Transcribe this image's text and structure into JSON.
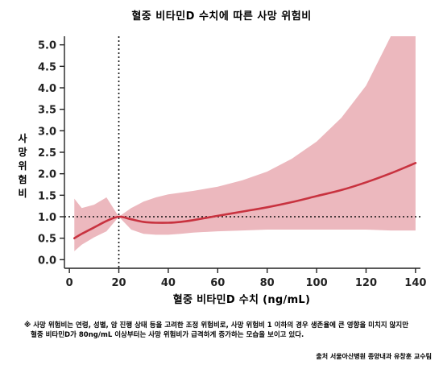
{
  "chart_data": {
    "type": "line",
    "title": "혈중 비타민D 수치에 따른 사망 위험비",
    "xlabel": "혈중 비타민D 수치 (ng/mL)",
    "ylabel": "사망\n위험비",
    "xlim": [
      -2,
      142
    ],
    "ylim": [
      -0.2,
      5.2
    ],
    "xticks": [
      0,
      20,
      40,
      60,
      80,
      100,
      120,
      140
    ],
    "xtick_labels": [
      "0",
      "20",
      "40",
      "60",
      "80",
      "100",
      "120",
      "140"
    ],
    "yticks": [
      0.0,
      0.5,
      1.0,
      1.5,
      2.0,
      2.5,
      3.0,
      3.5,
      4.0,
      4.5,
      5.0
    ],
    "ytick_labels": [
      "0.0",
      "0.5",
      "1.0",
      "1.5",
      "2.0",
      "2.5",
      "3.0",
      "3.5",
      "4.0",
      "4.5",
      "5.0"
    ],
    "reference_lines": {
      "vertical_x": 20,
      "horizontal_y": 1.0
    },
    "series": [
      {
        "color": "#c8323f",
        "x": [
          2,
          5,
          10,
          15,
          20,
          25,
          30,
          35,
          40,
          45,
          50,
          60,
          70,
          80,
          90,
          100,
          110,
          120,
          130,
          140
        ],
        "y": [
          0.5,
          0.6,
          0.75,
          0.9,
          1.0,
          0.94,
          0.88,
          0.86,
          0.86,
          0.88,
          0.92,
          1.02,
          1.12,
          1.22,
          1.34,
          1.48,
          1.62,
          1.8,
          2.01,
          2.25
        ],
        "ci_upper": [
          1.42,
          1.2,
          1.28,
          1.45,
          1.0,
          1.2,
          1.35,
          1.45,
          1.52,
          1.56,
          1.6,
          1.7,
          1.85,
          2.05,
          2.35,
          2.75,
          3.3,
          4.05,
          5.2,
          5.2
        ],
        "ci_lower": [
          0.2,
          0.35,
          0.52,
          0.66,
          1.0,
          0.7,
          0.6,
          0.58,
          0.58,
          0.6,
          0.63,
          0.66,
          0.68,
          0.7,
          0.7,
          0.7,
          0.7,
          0.7,
          0.68,
          0.68
        ]
      }
    ],
    "band_color": "#ecb8be"
  },
  "footnote": {
    "line1": "※ 사망 위험비는 연령, 성별, 암 진행 상태 등을 고려한 조정 위험비로, 사망 위험비 1 이하의 경우 생존율에 큰 영향을 미치지 않지만",
    "line2": "혈중 비타민D가 80ng/mL 이상부터는 사망 위험비가 급격하게 증가하는 모습을 보이고 있다."
  },
  "source": "출처 서울아산병원 종양내과 유창훈 교수팀"
}
